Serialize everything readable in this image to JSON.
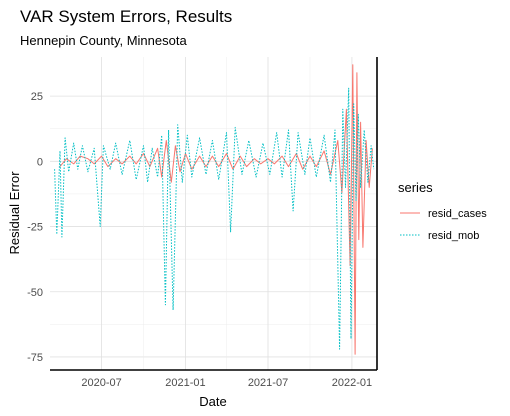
{
  "chart_data": {
    "type": "line",
    "title": "VAR System Errors, Results",
    "subtitle": "Hennepin County, Minnesota",
    "xlabel": "Date",
    "ylabel": "Residual Error",
    "x_ticks": [
      "2020-07",
      "2021-01",
      "2021-07",
      "2022-01"
    ],
    "y_ticks": [
      25,
      0,
      -25,
      -50,
      -75
    ],
    "xlim": [
      "2020-03-10",
      "2022-02-25"
    ],
    "ylim": [
      -80,
      40
    ],
    "grid": true,
    "legend_title": "series",
    "legend_position": "right",
    "series": [
      {
        "name": "resid_cases",
        "color": "#F8766D",
        "linetype": "solid",
        "points": [
          [
            "2020-04-01",
            -2
          ],
          [
            "2020-04-15",
            1
          ],
          [
            "2020-05-01",
            -1
          ],
          [
            "2020-05-15",
            2
          ],
          [
            "2020-06-01",
            1
          ],
          [
            "2020-06-15",
            -1
          ],
          [
            "2020-07-01",
            2
          ],
          [
            "2020-07-15",
            -2
          ],
          [
            "2020-08-01",
            1
          ],
          [
            "2020-08-15",
            -1
          ],
          [
            "2020-09-01",
            2
          ],
          [
            "2020-09-15",
            -1
          ],
          [
            "2020-10-01",
            3
          ],
          [
            "2020-10-15",
            -2
          ],
          [
            "2020-11-01",
            5
          ],
          [
            "2020-11-10",
            -6
          ],
          [
            "2020-11-20",
            8
          ],
          [
            "2020-12-01",
            -8
          ],
          [
            "2020-12-10",
            6
          ],
          [
            "2020-12-20",
            -4
          ],
          [
            "2021-01-01",
            3
          ],
          [
            "2021-01-15",
            -3
          ],
          [
            "2021-02-01",
            2
          ],
          [
            "2021-02-15",
            -2
          ],
          [
            "2021-03-01",
            2
          ],
          [
            "2021-03-15",
            -2
          ],
          [
            "2021-04-01",
            3
          ],
          [
            "2021-04-15",
            -3
          ],
          [
            "2021-05-01",
            2
          ],
          [
            "2021-05-15",
            -2
          ],
          [
            "2021-06-01",
            1
          ],
          [
            "2021-06-15",
            -1
          ],
          [
            "2021-07-01",
            1
          ],
          [
            "2021-07-15",
            -1
          ],
          [
            "2021-08-01",
            2
          ],
          [
            "2021-08-15",
            -2
          ],
          [
            "2021-09-01",
            3
          ],
          [
            "2021-09-15",
            -3
          ],
          [
            "2021-10-01",
            2
          ],
          [
            "2021-10-15",
            -2
          ],
          [
            "2021-11-01",
            4
          ],
          [
            "2021-11-15",
            -5
          ],
          [
            "2021-12-01",
            8
          ],
          [
            "2021-12-10",
            -12
          ],
          [
            "2021-12-20",
            20
          ],
          [
            "2021-12-28",
            -40
          ],
          [
            "2022-01-03",
            37
          ],
          [
            "2022-01-08",
            -74
          ],
          [
            "2022-01-12",
            34
          ],
          [
            "2022-01-16",
            -30
          ],
          [
            "2022-01-20",
            15
          ],
          [
            "2022-01-25",
            -33
          ],
          [
            "2022-02-01",
            8
          ],
          [
            "2022-02-08",
            -10
          ],
          [
            "2022-02-15",
            5
          ]
        ]
      },
      {
        "name": "resid_mob",
        "color": "#00BFC4",
        "linetype": "dotted",
        "points": [
          [
            "2020-03-20",
            -3
          ],
          [
            "2020-03-25",
            -28
          ],
          [
            "2020-04-01",
            4
          ],
          [
            "2020-04-05",
            -29
          ],
          [
            "2020-04-12",
            9
          ],
          [
            "2020-04-20",
            -4
          ],
          [
            "2020-05-01",
            7
          ],
          [
            "2020-05-10",
            -3
          ],
          [
            "2020-05-20",
            6
          ],
          [
            "2020-06-01",
            -4
          ],
          [
            "2020-06-15",
            5
          ],
          [
            "2020-06-28",
            -25
          ],
          [
            "2020-07-05",
            6
          ],
          [
            "2020-07-20",
            -3
          ],
          [
            "2020-08-01",
            7
          ],
          [
            "2020-08-15",
            -5
          ],
          [
            "2020-09-01",
            8
          ],
          [
            "2020-09-15",
            -7
          ],
          [
            "2020-10-01",
            6
          ],
          [
            "2020-10-10",
            -8
          ],
          [
            "2020-10-20",
            5
          ],
          [
            "2020-11-01",
            -6
          ],
          [
            "2020-11-10",
            10
          ],
          [
            "2020-11-18",
            -55
          ],
          [
            "2020-11-25",
            12
          ],
          [
            "2020-12-05",
            -57
          ],
          [
            "2020-12-15",
            14
          ],
          [
            "2020-12-25",
            -8
          ],
          [
            "2021-01-05",
            10
          ],
          [
            "2021-01-15",
            -6
          ],
          [
            "2021-02-01",
            9
          ],
          [
            "2021-02-15",
            -5
          ],
          [
            "2021-03-01",
            8
          ],
          [
            "2021-03-15",
            -7
          ],
          [
            "2021-04-01",
            11
          ],
          [
            "2021-04-10",
            -27
          ],
          [
            "2021-04-20",
            13
          ],
          [
            "2021-05-05",
            -5
          ],
          [
            "2021-05-20",
            8
          ],
          [
            "2021-06-05",
            -6
          ],
          [
            "2021-06-20",
            7
          ],
          [
            "2021-07-05",
            -5
          ],
          [
            "2021-07-20",
            11
          ],
          [
            "2021-08-01",
            -6
          ],
          [
            "2021-08-15",
            12
          ],
          [
            "2021-08-25",
            -19
          ],
          [
            "2021-09-05",
            11
          ],
          [
            "2021-09-20",
            -5
          ],
          [
            "2021-10-01",
            9
          ],
          [
            "2021-10-15",
            -6
          ],
          [
            "2021-11-01",
            10
          ],
          [
            "2021-11-15",
            -8
          ],
          [
            "2021-11-25",
            12
          ],
          [
            "2021-12-05",
            -72
          ],
          [
            "2021-12-12",
            20
          ],
          [
            "2021-12-18",
            -10
          ],
          [
            "2021-12-25",
            28
          ],
          [
            "2021-12-30",
            -68
          ],
          [
            "2022-01-05",
            22
          ],
          [
            "2022-01-10",
            -15
          ],
          [
            "2022-01-15",
            18
          ],
          [
            "2022-01-20",
            -10
          ],
          [
            "2022-01-28",
            12
          ],
          [
            "2022-02-05",
            -8
          ],
          [
            "2022-02-12",
            6
          ],
          [
            "2022-02-18",
            -3
          ]
        ]
      }
    ]
  }
}
